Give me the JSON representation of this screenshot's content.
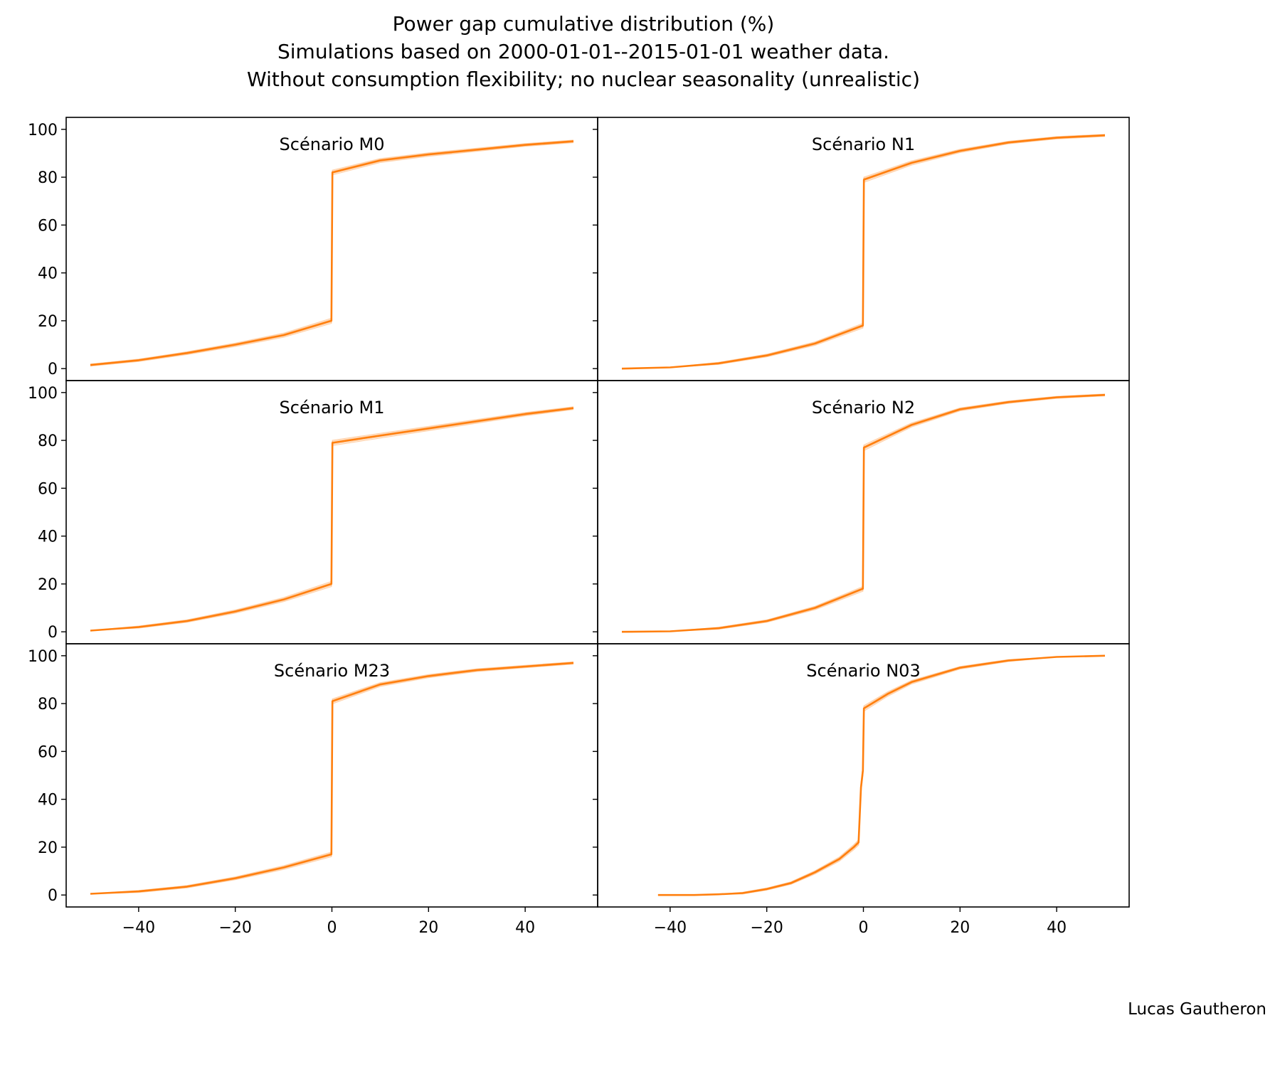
{
  "figure": {
    "title": [
      "Power gap cumulative distribution (%)",
      "Simulations based on 2000-01-01--2015-01-01 weather data.",
      "Without consumption flexibility; no nuclear seasonality (unrealistic)"
    ],
    "credit": "Lucas Gautheron",
    "line_color": "#ff7f0e"
  },
  "chart_data": [
    {
      "type": "line",
      "title": "Scénario M0",
      "xlim": [
        -55,
        55
      ],
      "ylim": [
        -5,
        105
      ],
      "yticks": [
        0,
        20,
        40,
        60,
        80,
        100
      ],
      "xticks": [
        -40,
        -20,
        0,
        20,
        40
      ],
      "grid": false,
      "x": [
        -50,
        -40,
        -30,
        -20,
        -10,
        -0.1,
        0.1,
        10,
        20,
        30,
        40,
        50
      ],
      "series": [
        {
          "values": [
            1.5,
            3.5,
            6.5,
            10,
            14,
            20,
            82,
            87,
            89.5,
            91.5,
            93.5,
            95
          ]
        }
      ]
    },
    {
      "type": "line",
      "title": "Scénario N1",
      "xlim": [
        -55,
        55
      ],
      "ylim": [
        -5,
        105
      ],
      "yticks": [
        0,
        20,
        40,
        60,
        80,
        100
      ],
      "xticks": [
        -40,
        -20,
        0,
        20,
        40
      ],
      "grid": false,
      "x": [
        -50,
        -40,
        -30,
        -20,
        -10,
        -0.1,
        0.1,
        10,
        20,
        30,
        40,
        50
      ],
      "series": [
        {
          "values": [
            0,
            0.5,
            2.2,
            5.5,
            10.5,
            18,
            79,
            86,
            91,
            94.5,
            96.5,
            97.5
          ]
        }
      ]
    },
    {
      "type": "line",
      "title": "Scénario M1",
      "xlim": [
        -55,
        55
      ],
      "ylim": [
        -5,
        105
      ],
      "yticks": [
        0,
        20,
        40,
        60,
        80,
        100
      ],
      "xticks": [
        -40,
        -20,
        0,
        20,
        40
      ],
      "grid": false,
      "x": [
        -50,
        -40,
        -30,
        -20,
        -10,
        -0.1,
        0.1,
        10,
        20,
        30,
        40,
        50
      ],
      "series": [
        {
          "values": [
            0.5,
            2,
            4.5,
            8.5,
            13.5,
            20,
            79,
            82,
            85,
            88,
            91,
            93.5
          ]
        }
      ]
    },
    {
      "type": "line",
      "title": "Scénario N2",
      "xlim": [
        -55,
        55
      ],
      "ylim": [
        -5,
        105
      ],
      "yticks": [
        0,
        20,
        40,
        60,
        80,
        100
      ],
      "xticks": [
        -40,
        -20,
        0,
        20,
        40
      ],
      "grid": false,
      "x": [
        -50,
        -40,
        -30,
        -20,
        -10,
        -0.1,
        0.1,
        10,
        20,
        30,
        40,
        50
      ],
      "series": [
        {
          "values": [
            0,
            0.2,
            1.5,
            4.5,
            10,
            18,
            77,
            86.5,
            93,
            96,
            98,
            99
          ]
        }
      ]
    },
    {
      "type": "line",
      "title": "Scénario M23",
      "xlim": [
        -55,
        55
      ],
      "ylim": [
        -5,
        105
      ],
      "yticks": [
        0,
        20,
        40,
        60,
        80,
        100
      ],
      "xticks": [
        -40,
        -20,
        0,
        20,
        40
      ],
      "grid": false,
      "x": [
        -50,
        -40,
        -30,
        -20,
        -10,
        -0.1,
        0.1,
        10,
        20,
        30,
        40,
        50
      ],
      "series": [
        {
          "values": [
            0.5,
            1.5,
            3.5,
            7,
            11.5,
            17,
            81,
            88,
            91.5,
            94,
            95.5,
            97
          ]
        }
      ]
    },
    {
      "type": "line",
      "title": "Scénario N03",
      "xlim": [
        -55,
        55
      ],
      "ylim": [
        -5,
        105
      ],
      "yticks": [
        0,
        20,
        40,
        60,
        80,
        100
      ],
      "xticks": [
        -40,
        -20,
        0,
        20,
        40
      ],
      "grid": false,
      "x": [
        -42.5,
        -35,
        -30,
        -25,
        -20,
        -15,
        -10,
        -5,
        -2,
        -1,
        -0.5,
        -0.1,
        0.1,
        5,
        10,
        20,
        30,
        40,
        50
      ],
      "series": [
        {
          "values": [
            0,
            0,
            0.3,
            0.8,
            2.5,
            5,
            9.5,
            15,
            20,
            22,
            45,
            52,
            78,
            84,
            89,
            95,
            98,
            99.5,
            100
          ]
        }
      ]
    }
  ]
}
